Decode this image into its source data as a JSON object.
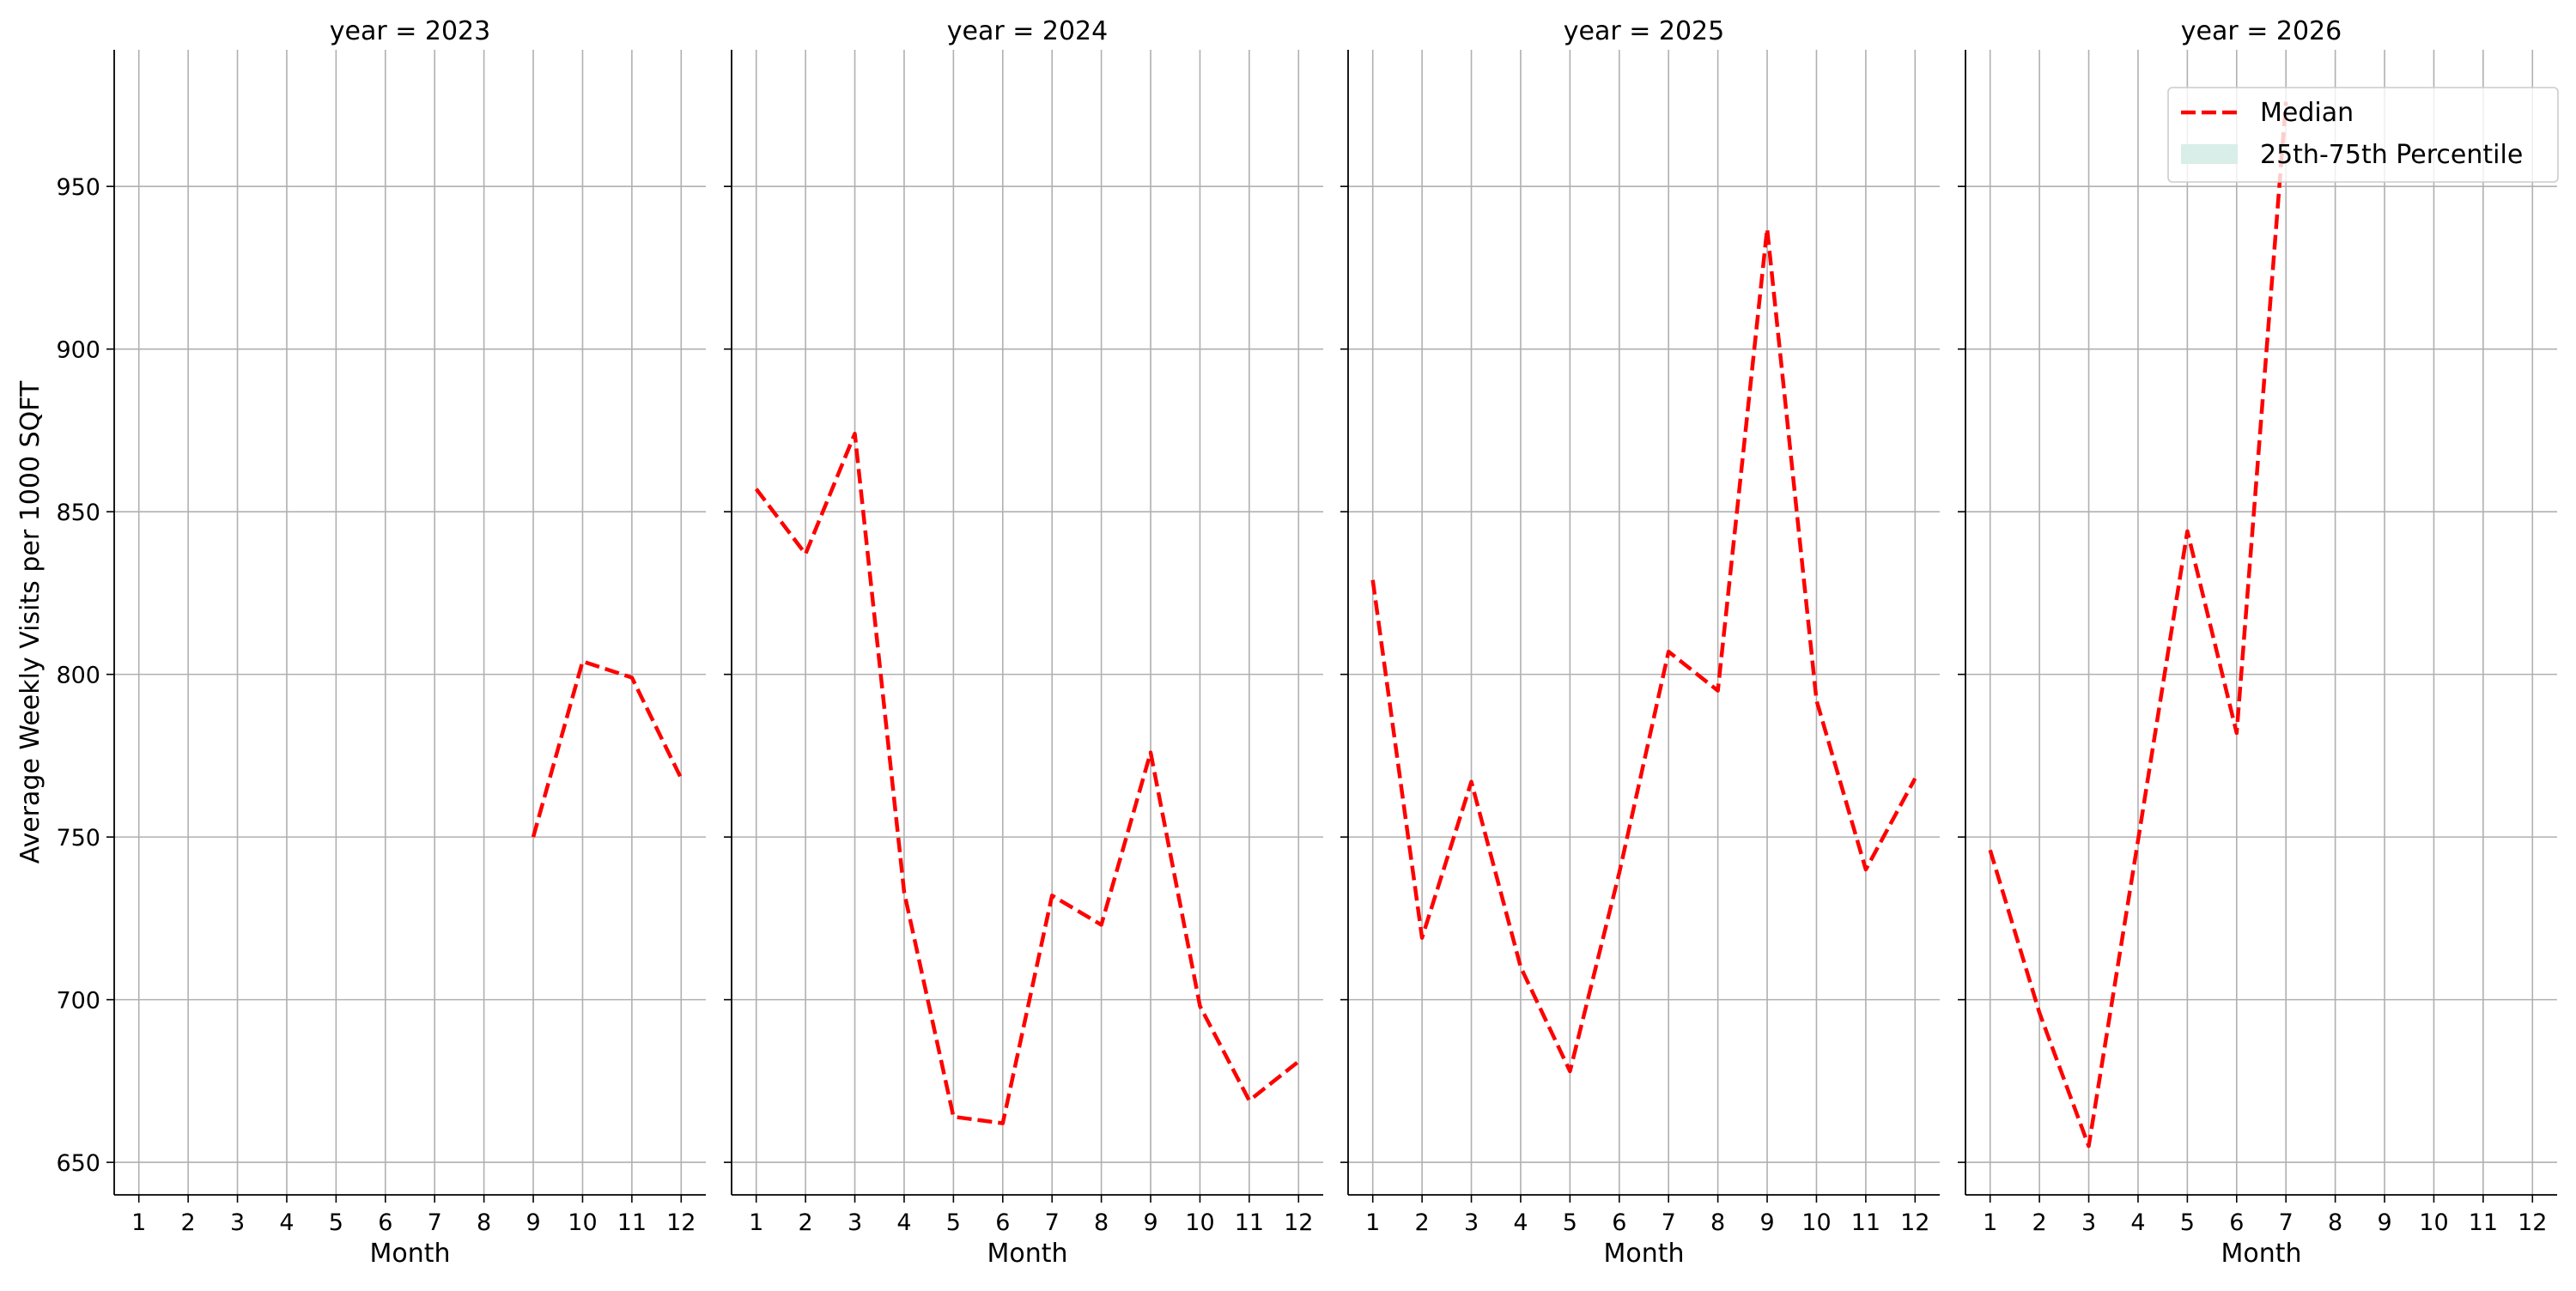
{
  "chart_data": {
    "type": "line",
    "ylabel": "Average Weekly Visits per 1000 SQFT",
    "ylim": [
      640,
      992
    ],
    "yticks": [
      650,
      700,
      750,
      800,
      850,
      900,
      950
    ],
    "xlim": [
      0.5,
      12.5
    ],
    "grid": true,
    "legend": {
      "placement": "top-right",
      "panel": 3,
      "entries": [
        {
          "label": "Median",
          "kind": "dashed-line",
          "color": "#ff0000"
        },
        {
          "label": "25th-75th Percentile",
          "kind": "band",
          "color": "#d9eee8"
        }
      ]
    },
    "panels": [
      {
        "title": "year = 2023",
        "xlabel": "Month",
        "x": [
          9,
          10,
          11,
          12
        ],
        "median": [
          750,
          804,
          799,
          768
        ]
      },
      {
        "title": "year = 2024",
        "xlabel": "Month",
        "x": [
          1,
          2,
          3,
          4,
          5,
          6,
          7,
          8,
          9,
          10,
          11,
          12
        ],
        "median": [
          857,
          837,
          874,
          733,
          664,
          662,
          732,
          723,
          776,
          698,
          669,
          681
        ]
      },
      {
        "title": "year = 2025",
        "xlabel": "Month",
        "x": [
          1,
          2,
          3,
          4,
          5,
          6,
          7,
          8,
          9,
          10,
          11,
          12
        ],
        "median": [
          829,
          719,
          767,
          710,
          678,
          739,
          807,
          795,
          937,
          792,
          740,
          768
        ]
      },
      {
        "title": "year = 2026",
        "xlabel": "Month",
        "x": [
          1,
          2,
          3,
          4,
          5,
          6,
          7
        ],
        "median": [
          746,
          696,
          655,
          749,
          844,
          782,
          976
        ]
      }
    ],
    "colors": {
      "median": "#ff0000",
      "band": "#d9eee8",
      "grid": "#b0b0b0",
      "axis": "#000000"
    }
  }
}
